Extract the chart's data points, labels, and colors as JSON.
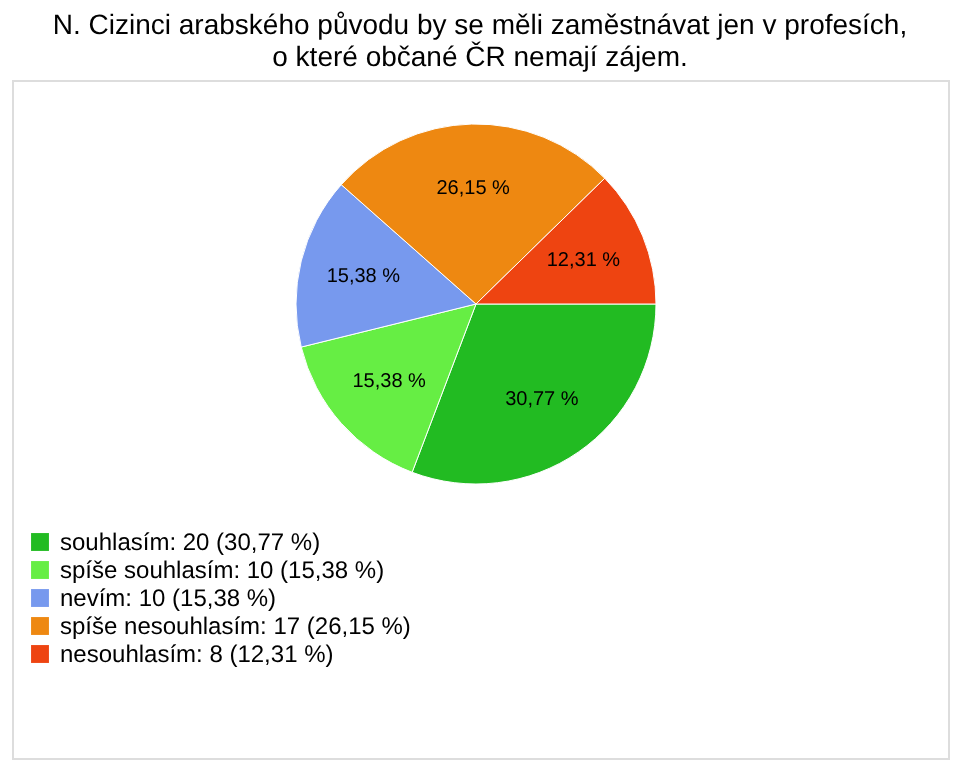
{
  "chart_data": {
    "type": "pie",
    "title": "N. Cizinci arabského původu by se měli zaměstnávat jen v profesích,\no které občané ČR nemají zájem.",
    "categories": [
      "souhlasím: 20 (30,77 %)",
      "spíše souhlasím: 10 (15,38 %)",
      "nevím: 10 (15,38 %)",
      "spíše nesouhlasím: 17 (26,15 %)",
      "nesouhlasím: 8 (12,31 %)"
    ],
    "values": [
      30.77,
      15.38,
      15.38,
      26.15,
      12.31
    ],
    "value_labels": [
      "30,77 %",
      "15,38 %",
      "15,38 %",
      "26,15 %",
      "12,31 %"
    ],
    "colors": [
      "#22bb22",
      "#66ee44",
      "#7799ee",
      "#ee8811",
      "#ee4411"
    ],
    "legend": "bottom left"
  }
}
